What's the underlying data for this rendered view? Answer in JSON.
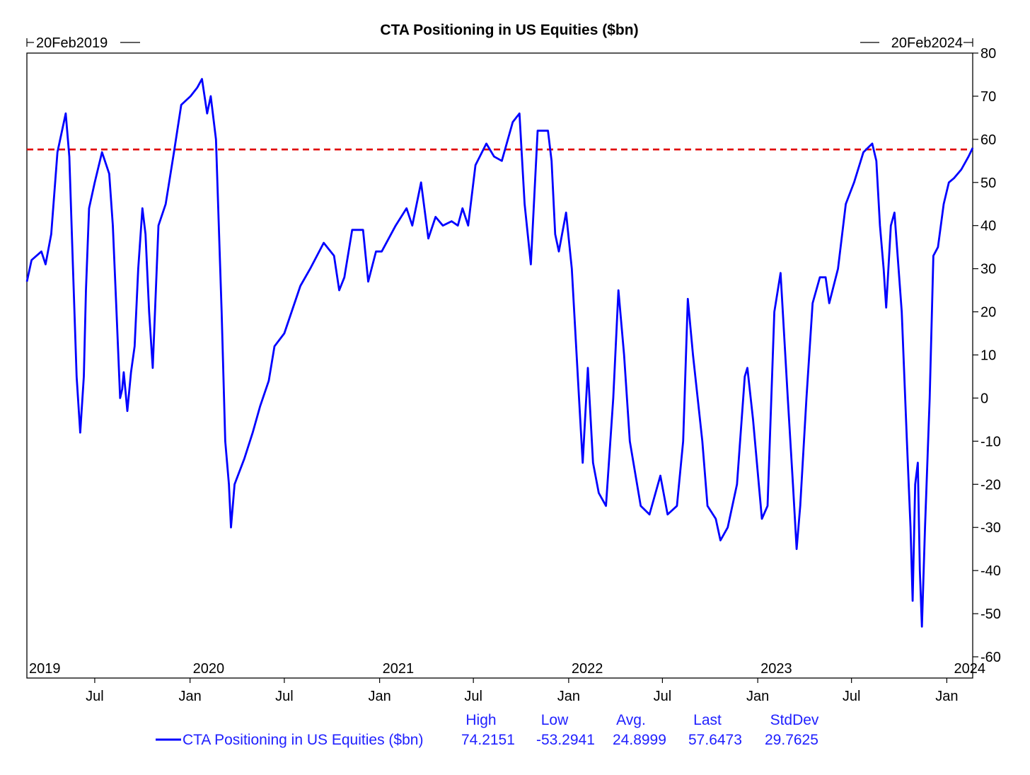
{
  "colors": {
    "series": "#0000ff",
    "reference": "#e00000",
    "axis": "#000000",
    "stats_text": "#2020ff"
  },
  "chart_data": {
    "type": "line",
    "title": "CTA Positioning in US Equities ($bn)",
    "date_range": {
      "start_label": "20Feb2019",
      "end_label": "20Feb2024"
    },
    "y_axis": {
      "side": "right",
      "ylim": [
        -60,
        80
      ],
      "ticks": [
        80,
        70,
        60,
        50,
        40,
        30,
        20,
        10,
        0,
        -10,
        -20,
        -30,
        -40,
        -50,
        -60
      ]
    },
    "x_axis": {
      "range": [
        "2019-02-20",
        "2024-02-20"
      ],
      "year_labels": [
        {
          "label": "2019",
          "date": "2019-02-20"
        },
        {
          "label": "2020",
          "date": "2020-01-01"
        },
        {
          "label": "2021",
          "date": "2021-01-01"
        },
        {
          "label": "2022",
          "date": "2022-01-01"
        },
        {
          "label": "2023",
          "date": "2023-01-01"
        },
        {
          "label": "2024",
          "date": "2024-01-01"
        }
      ],
      "month_labels": [
        {
          "label": "Jul",
          "date": "2019-07-01"
        },
        {
          "label": "Jan",
          "date": "2020-01-01"
        },
        {
          "label": "Jul",
          "date": "2020-07-01"
        },
        {
          "label": "Jan",
          "date": "2021-01-01"
        },
        {
          "label": "Jul",
          "date": "2021-07-01"
        },
        {
          "label": "Jan",
          "date": "2022-01-01"
        },
        {
          "label": "Jul",
          "date": "2022-07-01"
        },
        {
          "label": "Jan",
          "date": "2023-01-01"
        },
        {
          "label": "Jul",
          "date": "2023-07-01"
        },
        {
          "label": "Jan",
          "date": "2024-01-01"
        }
      ]
    },
    "reference_line": {
      "value": 57.6473,
      "style": "dashed"
    },
    "series": [
      {
        "name": "CTA Positioning in US Equities ($bn)",
        "points": [
          [
            "2019-02-20",
            27
          ],
          [
            "2019-03-01",
            32
          ],
          [
            "2019-03-20",
            34
          ],
          [
            "2019-03-28",
            31
          ],
          [
            "2019-04-08",
            38
          ],
          [
            "2019-04-20",
            57
          ],
          [
            "2019-05-06",
            66
          ],
          [
            "2019-05-13",
            56
          ],
          [
            "2019-05-20",
            30
          ],
          [
            "2019-05-27",
            5
          ],
          [
            "2019-06-03",
            -8
          ],
          [
            "2019-06-10",
            5
          ],
          [
            "2019-06-14",
            25
          ],
          [
            "2019-06-20",
            44
          ],
          [
            "2019-07-01",
            50
          ],
          [
            "2019-07-15",
            57
          ],
          [
            "2019-07-29",
            52
          ],
          [
            "2019-08-05",
            40
          ],
          [
            "2019-08-12",
            20
          ],
          [
            "2019-08-19",
            0
          ],
          [
            "2019-08-23",
            2
          ],
          [
            "2019-08-26",
            6
          ],
          [
            "2019-09-02",
            -3
          ],
          [
            "2019-09-09",
            6
          ],
          [
            "2019-09-16",
            12
          ],
          [
            "2019-09-23",
            30
          ],
          [
            "2019-10-01",
            44
          ],
          [
            "2019-10-07",
            38
          ],
          [
            "2019-10-14",
            20
          ],
          [
            "2019-10-21",
            7
          ],
          [
            "2019-11-01",
            40
          ],
          [
            "2019-11-15",
            45
          ],
          [
            "2019-12-01",
            57
          ],
          [
            "2019-12-15",
            68
          ],
          [
            "2020-01-02",
            70
          ],
          [
            "2020-01-15",
            72
          ],
          [
            "2020-01-24",
            74
          ],
          [
            "2020-02-03",
            66
          ],
          [
            "2020-02-10",
            70
          ],
          [
            "2020-02-20",
            60
          ],
          [
            "2020-03-02",
            20
          ],
          [
            "2020-03-09",
            -10
          ],
          [
            "2020-03-16",
            -20
          ],
          [
            "2020-03-20",
            -30
          ],
          [
            "2020-03-27",
            -20
          ],
          [
            "2020-04-15",
            -14
          ],
          [
            "2020-05-01",
            -8
          ],
          [
            "2020-05-15",
            -2
          ],
          [
            "2020-06-01",
            4
          ],
          [
            "2020-06-12",
            12
          ],
          [
            "2020-07-01",
            15
          ],
          [
            "2020-08-01",
            26
          ],
          [
            "2020-08-20",
            30
          ],
          [
            "2020-09-15",
            36
          ],
          [
            "2020-10-05",
            33
          ],
          [
            "2020-10-15",
            25
          ],
          [
            "2020-10-25",
            28
          ],
          [
            "2020-11-09",
            39
          ],
          [
            "2020-11-30",
            39
          ],
          [
            "2020-12-10",
            27
          ],
          [
            "2020-12-25",
            34
          ],
          [
            "2021-01-05",
            34
          ],
          [
            "2021-02-01",
            40
          ],
          [
            "2021-02-22",
            44
          ],
          [
            "2021-03-05",
            40
          ],
          [
            "2021-03-22",
            50
          ],
          [
            "2021-04-05",
            37
          ],
          [
            "2021-04-19",
            42
          ],
          [
            "2021-05-03",
            40
          ],
          [
            "2021-05-20",
            41
          ],
          [
            "2021-06-01",
            40
          ],
          [
            "2021-06-10",
            44
          ],
          [
            "2021-06-21",
            40
          ],
          [
            "2021-07-05",
            54
          ],
          [
            "2021-07-26",
            59
          ],
          [
            "2021-08-10",
            56
          ],
          [
            "2021-08-25",
            55
          ],
          [
            "2021-09-15",
            64
          ],
          [
            "2021-09-28",
            66
          ],
          [
            "2021-10-08",
            45
          ],
          [
            "2021-10-20",
            31
          ],
          [
            "2021-11-02",
            62
          ],
          [
            "2021-11-22",
            62
          ],
          [
            "2021-11-29",
            55
          ],
          [
            "2021-12-06",
            38
          ],
          [
            "2021-12-13",
            34
          ],
          [
            "2021-12-27",
            43
          ],
          [
            "2022-01-07",
            30
          ],
          [
            "2022-01-21",
            0
          ],
          [
            "2022-01-28",
            -15
          ],
          [
            "2022-02-07",
            7
          ],
          [
            "2022-02-17",
            -15
          ],
          [
            "2022-02-28",
            -22
          ],
          [
            "2022-03-14",
            -25
          ],
          [
            "2022-03-28",
            0
          ],
          [
            "2022-04-07",
            25
          ],
          [
            "2022-04-18",
            10
          ],
          [
            "2022-04-29",
            -10
          ],
          [
            "2022-05-20",
            -25
          ],
          [
            "2022-06-06",
            -27
          ],
          [
            "2022-06-27",
            -18
          ],
          [
            "2022-07-11",
            -27
          ],
          [
            "2022-07-29",
            -25
          ],
          [
            "2022-08-10",
            -10
          ],
          [
            "2022-08-19",
            23
          ],
          [
            "2022-08-29",
            10
          ],
          [
            "2022-09-16",
            -10
          ],
          [
            "2022-09-26",
            -25
          ],
          [
            "2022-10-12",
            -28
          ],
          [
            "2022-10-21",
            -33
          ],
          [
            "2022-11-04",
            -30
          ],
          [
            "2022-11-22",
            -20
          ],
          [
            "2022-12-07",
            5
          ],
          [
            "2022-12-12",
            7
          ],
          [
            "2022-12-23",
            -5
          ],
          [
            "2023-01-09",
            -28
          ],
          [
            "2023-01-20",
            -25
          ],
          [
            "2023-02-02",
            20
          ],
          [
            "2023-02-14",
            29
          ],
          [
            "2023-02-28",
            0
          ],
          [
            "2023-03-10",
            -20
          ],
          [
            "2023-03-17",
            -35
          ],
          [
            "2023-03-24",
            -25
          ],
          [
            "2023-04-05",
            0
          ],
          [
            "2023-04-17",
            22
          ],
          [
            "2023-05-01",
            28
          ],
          [
            "2023-05-12",
            28
          ],
          [
            "2023-05-19",
            22
          ],
          [
            "2023-06-05",
            30
          ],
          [
            "2023-06-20",
            45
          ],
          [
            "2023-07-06",
            50
          ],
          [
            "2023-07-24",
            57
          ],
          [
            "2023-08-10",
            59
          ],
          [
            "2023-08-18",
            55
          ],
          [
            "2023-08-25",
            40
          ],
          [
            "2023-09-01",
            30
          ],
          [
            "2023-09-06",
            21
          ],
          [
            "2023-09-15",
            40
          ],
          [
            "2023-09-22",
            43
          ],
          [
            "2023-10-06",
            20
          ],
          [
            "2023-10-16",
            -10
          ],
          [
            "2023-10-23",
            -30
          ],
          [
            "2023-10-27",
            -47
          ],
          [
            "2023-11-01",
            -20
          ],
          [
            "2023-11-06",
            -15
          ],
          [
            "2023-11-10",
            -40
          ],
          [
            "2023-11-14",
            -53
          ],
          [
            "2023-11-20",
            -30
          ],
          [
            "2023-11-29",
            0
          ],
          [
            "2023-12-06",
            33
          ],
          [
            "2023-12-15",
            35
          ],
          [
            "2023-12-26",
            45
          ],
          [
            "2024-01-05",
            50
          ],
          [
            "2024-01-15",
            51
          ],
          [
            "2024-01-29",
            53
          ],
          [
            "2024-02-12",
            56
          ],
          [
            "2024-02-20",
            58
          ]
        ]
      }
    ]
  },
  "legend": {
    "series_label": "CTA Positioning in US Equities ($bn)",
    "headers": {
      "high": "High",
      "low": "Low",
      "avg": "Avg.",
      "last": "Last",
      "stddev": "StdDev"
    },
    "values": {
      "high": "74.2151",
      "low": "-53.2941",
      "avg": "24.8999",
      "last": "57.6473",
      "stddev": "29.7625"
    }
  }
}
